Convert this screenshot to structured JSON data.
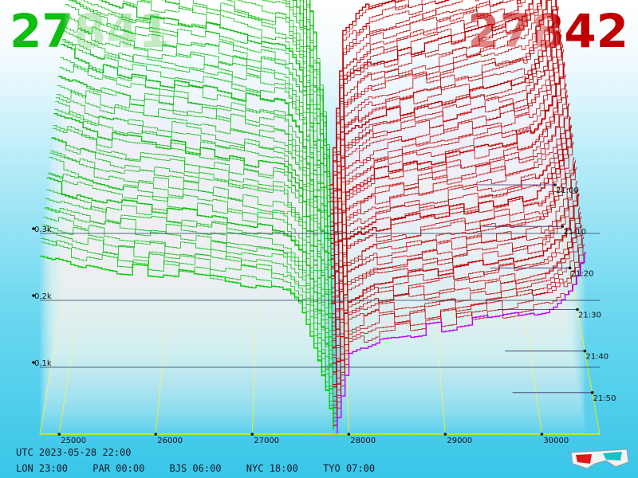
{
  "header": {
    "bid_price": "27841",
    "ask_price": "27842"
  },
  "colors": {
    "bid": "#0fbe10",
    "ask": "#c00000",
    "grid": "#e8e800",
    "latest_bid": "#00d000",
    "latest_ask": "#c000ff"
  },
  "footer": {
    "utc_label": "UTC 2023-05-28 22:00",
    "zones": [
      {
        "label": "LON 23:00"
      },
      {
        "label": "PAR 00:00"
      },
      {
        "label": "BJS 06:00"
      },
      {
        "label": "NYC 18:00"
      },
      {
        "label": "TYO 07:00"
      }
    ]
  },
  "icons": {
    "glasses": "3d-glasses-icon"
  },
  "chart_data": {
    "type": "area",
    "xlim": [
      24800,
      30600
    ],
    "x_ticks": [
      "25000",
      "26000",
      "27000",
      "28000",
      "29000",
      "30000"
    ],
    "x_tick_values": [
      25000,
      26000,
      27000,
      28000,
      29000,
      30000
    ],
    "y_ticks": [
      "0.1k",
      "0.2k",
      "0.3k"
    ],
    "y_tick_values": [
      100,
      200,
      300
    ],
    "time_ticks": [
      "21:00",
      "21:10",
      "21:20",
      "21:30",
      "21:40",
      "21:50"
    ],
    "time_tick_offsets": [
      60,
      50,
      40,
      30,
      20,
      10
    ],
    "mid_price": 27841.5,
    "bid_curve": [
      {
        "x": 24800,
        "y": 500
      },
      {
        "x": 25200,
        "y": 470
      },
      {
        "x": 25600,
        "y": 450
      },
      {
        "x": 26000,
        "y": 440
      },
      {
        "x": 26500,
        "y": 425
      },
      {
        "x": 27000,
        "y": 405
      },
      {
        "x": 27300,
        "y": 395
      },
      {
        "x": 27500,
        "y": 340
      },
      {
        "x": 27650,
        "y": 220
      },
      {
        "x": 27780,
        "y": 90
      },
      {
        "x": 27841,
        "y": 0
      }
    ],
    "ask_curve": [
      {
        "x": 27842,
        "y": 0
      },
      {
        "x": 27900,
        "y": 90
      },
      {
        "x": 28000,
        "y": 230
      },
      {
        "x": 28300,
        "y": 265
      },
      {
        "x": 28700,
        "y": 280
      },
      {
        "x": 29200,
        "y": 300
      },
      {
        "x": 29700,
        "y": 320
      },
      {
        "x": 30100,
        "y": 340
      },
      {
        "x": 30300,
        "y": 390
      },
      {
        "x": 30450,
        "y": 480
      }
    ],
    "snapshots": 60,
    "grid": true
  }
}
